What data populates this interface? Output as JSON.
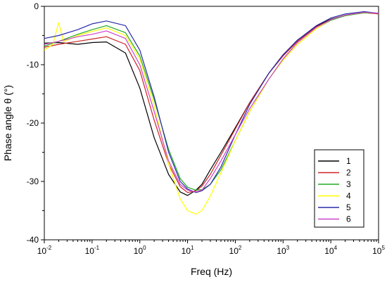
{
  "chart_data": {
    "type": "line",
    "xlabel": "Freq (Hz)",
    "ylabel": "Phase angle θ (°)",
    "x_scale": "log",
    "xlim": [
      0.01,
      100000
    ],
    "ylim": [
      -40,
      0
    ],
    "x_ticks": [
      {
        "base": "10",
        "exp": "-2"
      },
      {
        "base": "10",
        "exp": "-1"
      },
      {
        "base": "10",
        "exp": "0"
      },
      {
        "base": "10",
        "exp": "1"
      },
      {
        "base": "10",
        "exp": "2"
      },
      {
        "base": "10",
        "exp": "3"
      },
      {
        "base": "10",
        "exp": "4"
      },
      {
        "base": "10",
        "exp": "5"
      }
    ],
    "y_ticks": [
      "0",
      "-10",
      "-20",
      "-30",
      "-40"
    ],
    "grid": false,
    "legend_position": "bottom-right",
    "series": [
      {
        "name": "1",
        "color": "#000000",
        "x": [
          0.01,
          0.02,
          0.05,
          0.1,
          0.2,
          0.5,
          1,
          2,
          4,
          7,
          10,
          15,
          20,
          30,
          50,
          100,
          200,
          500,
          1000,
          2000,
          5000,
          10000,
          20000,
          50000,
          100000
        ],
        "y": [
          -6.3,
          -6.2,
          -6.5,
          -6.2,
          -6.1,
          -8,
          -14,
          -22.5,
          -28.8,
          -31.8,
          -32.4,
          -31.5,
          -30.5,
          -28,
          -25,
          -20.8,
          -16.5,
          -11.5,
          -8.3,
          -5.8,
          -3.4,
          -2.2,
          -1.5,
          -1,
          -1.2
        ]
      },
      {
        "name": "2",
        "color": "#cc2222",
        "x": [
          0.01,
          0.02,
          0.05,
          0.1,
          0.2,
          0.5,
          1,
          2,
          4,
          7,
          10,
          15,
          20,
          30,
          50,
          100,
          200,
          500,
          1000,
          2000,
          5000,
          10000,
          20000,
          50000,
          100000
        ],
        "y": [
          -7,
          -6.5,
          -6,
          -5.6,
          -5.2,
          -6.5,
          -11,
          -19.5,
          -27,
          -30.9,
          -31.9,
          -31.6,
          -30.8,
          -28.8,
          -25.5,
          -21,
          -16.5,
          -11.5,
          -8.5,
          -6,
          -3.5,
          -2.3,
          -1.6,
          -1.1,
          -1.3
        ]
      },
      {
        "name": "3",
        "color": "#22aa22",
        "x": [
          0.01,
          0.02,
          0.05,
          0.1,
          0.2,
          0.5,
          1,
          2,
          4,
          7,
          10,
          15,
          20,
          30,
          50,
          100,
          200,
          500,
          1000,
          2000,
          5000,
          10000,
          20000,
          50000,
          100000
        ],
        "y": [
          -6.8,
          -6,
          -4.8,
          -4,
          -3.3,
          -4.5,
          -8.5,
          -16,
          -24.5,
          -29.5,
          -31,
          -31.5,
          -31.4,
          -30.5,
          -28,
          -23,
          -18,
          -12.5,
          -9.2,
          -6.5,
          -3.8,
          -2.4,
          -1.6,
          -1.1,
          -1.2
        ]
      },
      {
        "name": "4",
        "color": "#ffff00",
        "x": [
          0.01,
          0.015,
          0.02,
          0.025,
          0.03,
          0.05,
          0.1,
          0.2,
          0.5,
          1,
          2,
          4,
          7,
          10,
          15,
          20,
          30,
          50,
          100,
          200,
          500,
          1000,
          2000,
          5000,
          10000,
          20000,
          50000,
          100000
        ],
        "y": [
          -7.5,
          -6.5,
          -2.8,
          -6,
          -5.8,
          -5,
          -4.3,
          -3.7,
          -5,
          -9,
          -17,
          -27,
          -33,
          -35,
          -35.6,
          -35,
          -32.5,
          -28.5,
          -23,
          -18,
          -12.5,
          -9.2,
          -6.5,
          -3.8,
          -2.3,
          -1.5,
          -1,
          -1.2
        ]
      },
      {
        "name": "5",
        "color": "#2a2aaa",
        "x": [
          0.01,
          0.02,
          0.05,
          0.1,
          0.2,
          0.5,
          1,
          2,
          4,
          7,
          10,
          15,
          20,
          30,
          50,
          100,
          200,
          500,
          1000,
          2000,
          5000,
          10000,
          20000,
          50000,
          100000
        ],
        "y": [
          -5.5,
          -5,
          -4,
          -3,
          -2.5,
          -3.3,
          -7.5,
          -15.5,
          -25,
          -30,
          -31.3,
          -31.9,
          -31.6,
          -30.5,
          -27.5,
          -22,
          -16.8,
          -11.5,
          -8.3,
          -5.8,
          -3.3,
          -2,
          -1.3,
          -0.9,
          -1.2
        ]
      },
      {
        "name": "6",
        "color": "#cc44cc",
        "x": [
          0.01,
          0.02,
          0.05,
          0.1,
          0.2,
          0.5,
          1,
          2,
          4,
          7,
          10,
          15,
          20,
          30,
          50,
          100,
          200,
          500,
          1000,
          2000,
          5000,
          10000,
          20000,
          50000,
          100000
        ],
        "y": [
          -6.5,
          -6,
          -5.2,
          -4.8,
          -4.2,
          -5.5,
          -10,
          -18,
          -26.5,
          -30.5,
          -31.5,
          -31.8,
          -31.5,
          -29.5,
          -26.5,
          -22,
          -17.5,
          -12.5,
          -9,
          -6.2,
          -3.6,
          -2.3,
          -1.5,
          -1,
          -1.2
        ]
      }
    ]
  }
}
